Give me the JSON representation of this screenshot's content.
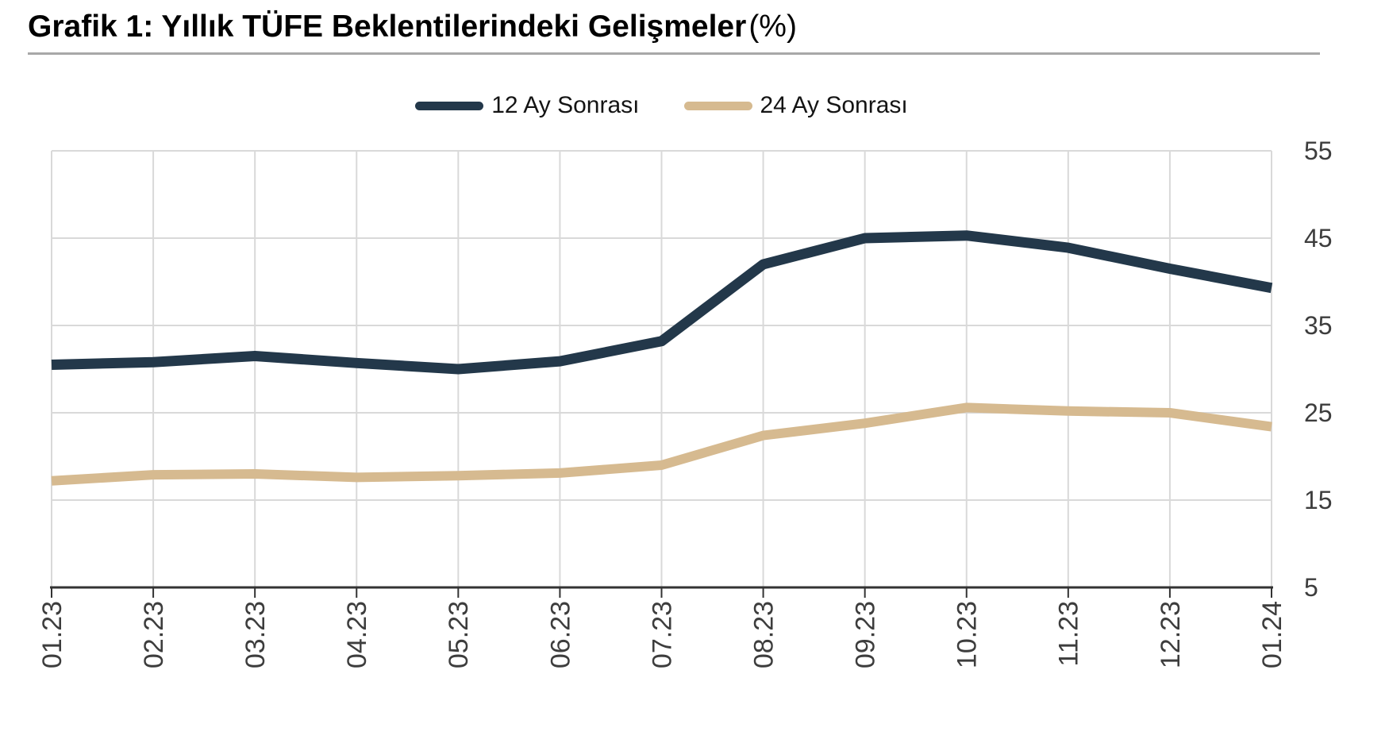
{
  "chart_data": {
    "type": "line",
    "title": "Grafik 1: Yıllık TÜFE Beklentilerindeki Gelişmeler",
    "title_suffix": "(%)",
    "categories": [
      "01.23",
      "02.23",
      "03.23",
      "04.23",
      "05.23",
      "06.23",
      "07.23",
      "08.23",
      "09.23",
      "10.23",
      "11.23",
      "12.23",
      "01.24"
    ],
    "series": [
      {
        "name": "12 Ay Sonrası",
        "color": "#23384a",
        "values": [
          30.5,
          30.8,
          31.5,
          30.7,
          30.0,
          30.9,
          33.2,
          42.0,
          45.0,
          45.3,
          43.9,
          41.5,
          39.3
        ]
      },
      {
        "name": "24 Ay Sonrası",
        "color": "#d6ba90",
        "values": [
          17.2,
          17.9,
          18.0,
          17.6,
          17.8,
          18.1,
          19.0,
          22.4,
          23.8,
          25.6,
          25.2,
          25.0,
          23.4
        ]
      }
    ],
    "y_ticks": [
      5,
      15,
      25,
      35,
      45,
      55
    ],
    "ylim": [
      5,
      55
    ],
    "xlabel": "",
    "ylabel": "",
    "grid": true,
    "legend_position": "top",
    "y_axis_side": "right",
    "x_label_rotation": -90
  },
  "colors": {
    "gridline": "#d9d9d9",
    "axis": "#333333",
    "tick_text": "#3d3d3d",
    "title_rule": "#a8a8a8"
  }
}
